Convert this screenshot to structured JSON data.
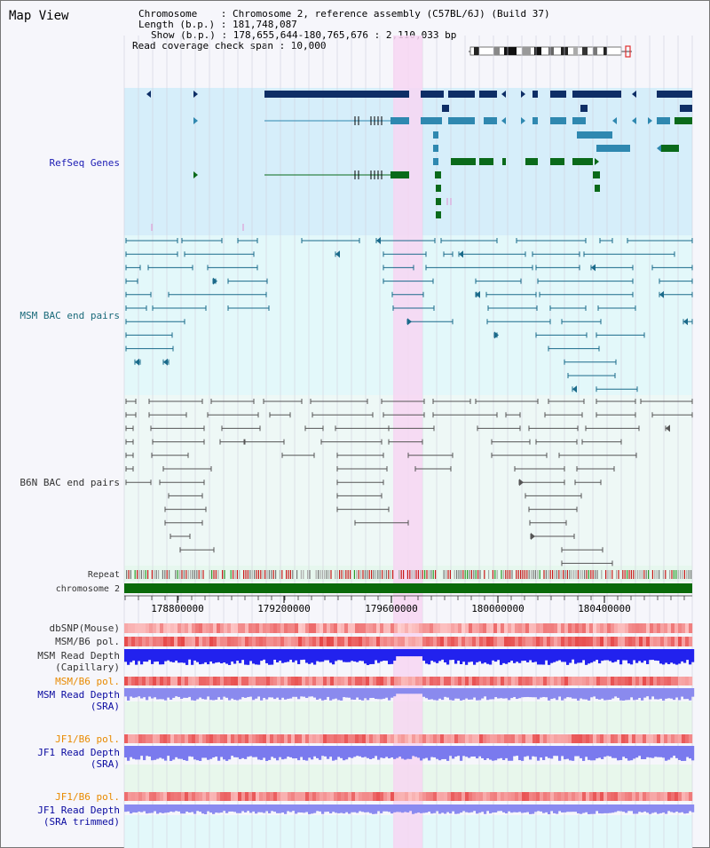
{
  "page": {
    "title": "Map View"
  },
  "info": {
    "chromosome_line": "Chromosome    : Chromosome 2, reference assembly (C57BL/6J) (Build 37)",
    "length_line": "Length (b.p.) : 181,748,087",
    "show_line": "Show (b.p.) : 178,655,644-180,765,676 : 2,110,033 bp",
    "coverage_line": "Read coverage check span : 10,000"
  },
  "tracks": {
    "refseq": "RefSeq Genes",
    "msm_bac": "MSM BAC end pairs",
    "b6n_bac": "B6N BAC end pairs",
    "repeat": "Repeat",
    "chromosome": "chromosome 2",
    "dbsnp": "dbSNP(Mouse)",
    "msm_b6_pol_1": "MSM/B6 pol.",
    "msm_depth_cap_1": "MSM Read Depth",
    "msm_depth_cap_2": "(Capillary)",
    "msm_b6_pol_2": "MSM/B6 pol.",
    "msm_depth_sra_1": "MSM Read Depth",
    "msm_depth_sra_2": "(SRA)",
    "jf1_pol_1": "JF1/B6 pol.",
    "jf1_depth_sra_1": "JF1 Read Depth",
    "jf1_depth_sra_2": "(SRA)",
    "jf1_pol_2": "JF1/B6 pol.",
    "jf1_depth_trim_1": "JF1 Read Depth",
    "jf1_depth_trim_2": "(SRA trimmed)"
  },
  "axis": {
    "ticks": [
      "178800000",
      "179200000",
      "179600000",
      "180000000",
      "180400000"
    ]
  },
  "colors": {
    "refseq_bg": "#d6eefa",
    "msm_bg": "#e3f8fa",
    "b6n_bg": "#eef8f6",
    "highlight": "#f7d6f2",
    "gene_dark": "#0e2e66",
    "gene_mid": "#2f88b0",
    "gene_green": "#0a6a1a",
    "msm_pair": "#1a6a8a",
    "b6n_pair": "#555555",
    "chromosome_bar": "#0a6a0a",
    "depth_blue": "#2222ee",
    "depth_light": "#8a8aee"
  }
}
